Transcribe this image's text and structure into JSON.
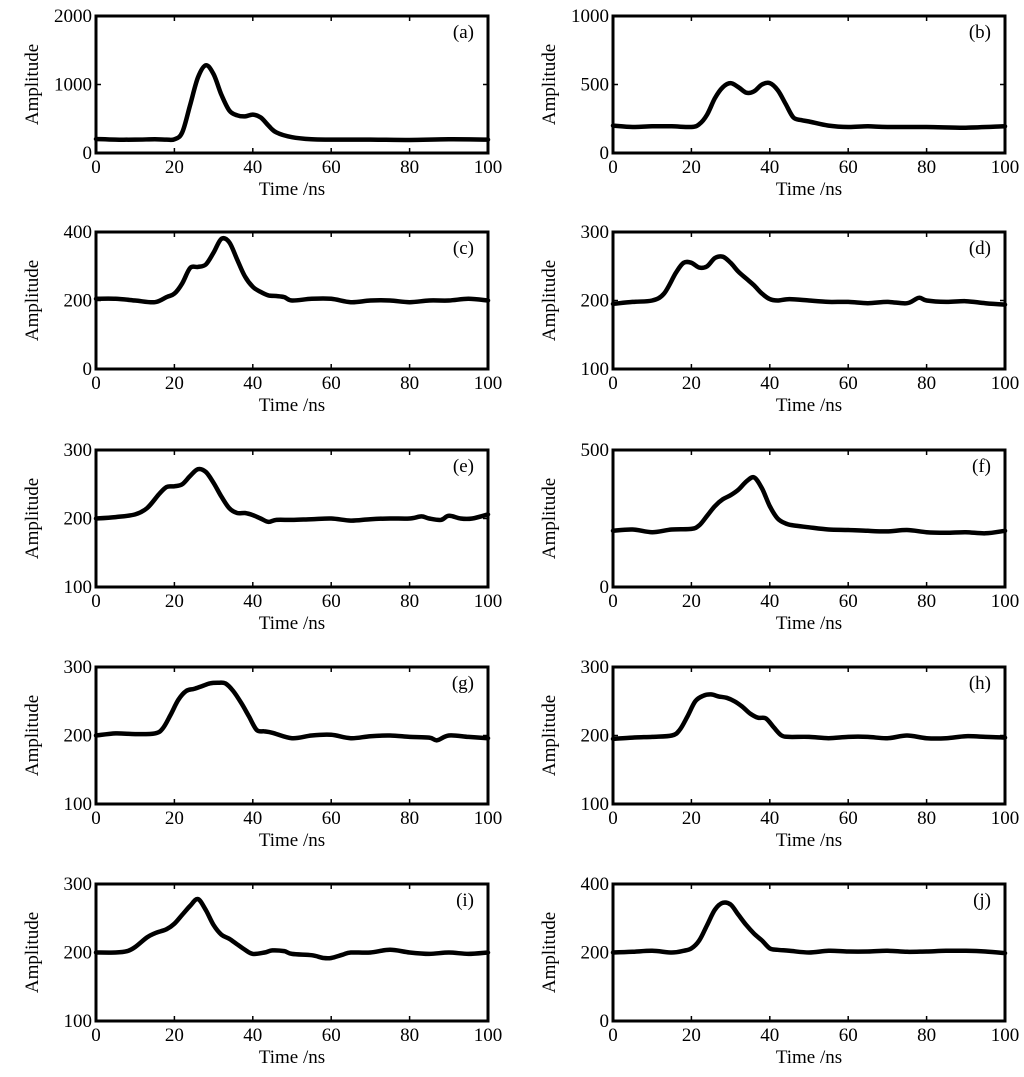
{
  "chart_data": [
    {
      "panel": "(a)",
      "type": "line",
      "xlabel": "Time /ns",
      "ylabel": "Amplitude",
      "xlim": [
        0,
        100
      ],
      "ylim": [
        0,
        2000
      ],
      "xticks": [
        "0",
        "20",
        "40",
        "60",
        "80",
        "100"
      ],
      "yticks": [
        "0",
        "1000",
        "2000"
      ],
      "series": [
        {
          "name": "(a)",
          "x": [
            0,
            5,
            10,
            15,
            18,
            20,
            22,
            24,
            26,
            28,
            30,
            32,
            34,
            36,
            38,
            40,
            42,
            44,
            46,
            50,
            55,
            60,
            70,
            80,
            90,
            100
          ],
          "values": [
            205,
            195,
            195,
            200,
            195,
            200,
            300,
            700,
            1100,
            1280,
            1150,
            850,
            620,
            550,
            535,
            560,
            520,
            400,
            300,
            230,
            200,
            195,
            195,
            190,
            200,
            195
          ]
        }
      ]
    },
    {
      "panel": "(b)",
      "type": "line",
      "xlabel": "Time /ns",
      "ylabel": "Amplitude",
      "xlim": [
        0,
        100
      ],
      "ylim": [
        0,
        1000
      ],
      "xticks": [
        "0",
        "20",
        "40",
        "60",
        "80",
        "100"
      ],
      "yticks": [
        "0",
        "500",
        "1000"
      ],
      "series": [
        {
          "name": "(b)",
          "x": [
            0,
            5,
            10,
            15,
            20,
            22,
            24,
            26,
            28,
            30,
            32,
            34,
            36,
            38,
            40,
            42,
            44,
            46,
            48,
            50,
            55,
            60,
            65,
            70,
            80,
            90,
            100
          ],
          "values": [
            200,
            190,
            195,
            195,
            190,
            210,
            280,
            400,
            480,
            510,
            480,
            440,
            450,
            500,
            510,
            460,
            360,
            260,
            240,
            230,
            200,
            190,
            195,
            190,
            190,
            185,
            195
          ]
        }
      ]
    },
    {
      "panel": "(c)",
      "type": "line",
      "xlabel": "Time /ns",
      "ylabel": "Amplitude",
      "xlim": [
        0,
        100
      ],
      "ylim": [
        0,
        400
      ],
      "xticks": [
        "0",
        "20",
        "40",
        "60",
        "80",
        "100"
      ],
      "yticks": [
        "0",
        "200",
        "400"
      ],
      "series": [
        {
          "name": "(c)",
          "x": [
            0,
            5,
            10,
            15,
            18,
            20,
            22,
            24,
            26,
            28,
            30,
            32,
            34,
            36,
            38,
            40,
            42,
            44,
            46,
            48,
            50,
            55,
            60,
            65,
            70,
            75,
            80,
            85,
            90,
            95,
            100
          ],
          "values": [
            205,
            205,
            200,
            195,
            210,
            220,
            250,
            295,
            298,
            305,
            340,
            380,
            370,
            320,
            270,
            240,
            225,
            215,
            213,
            210,
            200,
            205,
            205,
            195,
            200,
            200,
            195,
            200,
            200,
            205,
            200
          ]
        }
      ]
    },
    {
      "panel": "(d)",
      "type": "line",
      "xlabel": "Time /ns",
      "ylabel": "Amplitude",
      "xlim": [
        0,
        100
      ],
      "ylim": [
        100,
        300
      ],
      "xticks": [
        "0",
        "20",
        "40",
        "60",
        "80",
        "100"
      ],
      "yticks": [
        "100",
        "200",
        "300"
      ],
      "series": [
        {
          "name": "(d)",
          "x": [
            0,
            5,
            10,
            13,
            16,
            18,
            20,
            22,
            24,
            26,
            28,
            30,
            32,
            34,
            36,
            38,
            40,
            42,
            45,
            50,
            55,
            60,
            65,
            70,
            75,
            78,
            80,
            85,
            90,
            95,
            100
          ],
          "values": [
            195,
            198,
            200,
            210,
            240,
            255,
            255,
            248,
            250,
            262,
            264,
            255,
            242,
            232,
            222,
            210,
            202,
            200,
            202,
            200,
            198,
            198,
            196,
            198,
            196,
            204,
            200,
            198,
            199,
            196,
            194
          ]
        }
      ]
    },
    {
      "panel": "(e)",
      "type": "line",
      "xlabel": "Time /ns",
      "ylabel": "Amplitude",
      "xlim": [
        0,
        100
      ],
      "ylim": [
        100,
        300
      ],
      "xticks": [
        "0",
        "20",
        "40",
        "60",
        "80",
        "100"
      ],
      "yticks": [
        "100",
        "200",
        "300"
      ],
      "series": [
        {
          "name": "(e)",
          "x": [
            0,
            5,
            10,
            13,
            16,
            18,
            20,
            22,
            24,
            26,
            28,
            30,
            32,
            34,
            36,
            38,
            40,
            42,
            44,
            46,
            50,
            55,
            60,
            65,
            70,
            75,
            80,
            83,
            85,
            88,
            90,
            93,
            96,
            100
          ],
          "values": [
            200,
            202,
            206,
            215,
            235,
            246,
            247,
            250,
            262,
            272,
            268,
            252,
            232,
            215,
            208,
            208,
            205,
            200,
            195,
            198,
            198,
            199,
            200,
            197,
            199,
            200,
            200,
            203,
            200,
            198,
            204,
            200,
            200,
            206
          ]
        }
      ]
    },
    {
      "panel": "(f)",
      "type": "line",
      "xlabel": "Time /ns",
      "ylabel": "Amplitude",
      "xlim": [
        0,
        100
      ],
      "ylim": [
        0,
        500
      ],
      "xticks": [
        "0",
        "20",
        "40",
        "60",
        "80",
        "100"
      ],
      "yticks": [
        "0",
        "500"
      ],
      "series": [
        {
          "name": "(f)",
          "x": [
            0,
            5,
            10,
            15,
            20,
            22,
            24,
            26,
            28,
            30,
            32,
            34,
            36,
            38,
            40,
            42,
            44,
            46,
            50,
            55,
            60,
            65,
            70,
            75,
            80,
            85,
            90,
            95,
            100
          ],
          "values": [
            205,
            210,
            200,
            210,
            212,
            225,
            260,
            295,
            320,
            335,
            355,
            385,
            400,
            360,
            295,
            250,
            232,
            225,
            218,
            210,
            208,
            205,
            203,
            208,
            200,
            198,
            200,
            196,
            205
          ]
        }
      ]
    },
    {
      "panel": "(g)",
      "type": "line",
      "xlabel": "Time /ns",
      "ylabel": "Amplitude",
      "xlim": [
        0,
        100
      ],
      "ylim": [
        100,
        300
      ],
      "xticks": [
        "0",
        "20",
        "40",
        "60",
        "80",
        "100"
      ],
      "yticks": [
        "100",
        "200",
        "300"
      ],
      "series": [
        {
          "name": "(g)",
          "x": [
            0,
            5,
            10,
            15,
            17,
            19,
            21,
            23,
            25,
            27,
            29,
            31,
            33,
            35,
            37,
            39,
            41,
            43,
            45,
            50,
            55,
            60,
            65,
            70,
            75,
            80,
            85,
            87,
            90,
            95,
            100
          ],
          "values": [
            200,
            203,
            202,
            203,
            210,
            230,
            252,
            265,
            268,
            272,
            276,
            277,
            276,
            265,
            248,
            228,
            208,
            206,
            204,
            196,
            200,
            201,
            196,
            199,
            200,
            198,
            197,
            193,
            200,
            198,
            196
          ]
        }
      ]
    },
    {
      "panel": "(h)",
      "type": "line",
      "xlabel": "Time /ns",
      "ylabel": "Amplitude",
      "xlim": [
        0,
        100
      ],
      "ylim": [
        100,
        300
      ],
      "xticks": [
        "0",
        "20",
        "40",
        "60",
        "80",
        "100"
      ],
      "yticks": [
        "100",
        "200",
        "300"
      ],
      "series": [
        {
          "name": "(h)",
          "x": [
            0,
            5,
            10,
            15,
            17,
            19,
            21,
            23,
            25,
            27,
            29,
            31,
            33,
            35,
            37,
            39,
            41,
            43,
            45,
            50,
            55,
            60,
            65,
            70,
            75,
            80,
            85,
            90,
            95,
            100
          ],
          "values": [
            195,
            197,
            198,
            200,
            208,
            228,
            250,
            258,
            260,
            257,
            255,
            250,
            242,
            232,
            226,
            225,
            212,
            200,
            198,
            198,
            196,
            198,
            198,
            196,
            200,
            196,
            196,
            199,
            198,
            197
          ]
        }
      ]
    },
    {
      "panel": "(i)",
      "type": "line",
      "xlabel": "Time /ns",
      "ylabel": "Amplitude",
      "xlim": [
        0,
        100
      ],
      "ylim": [
        100,
        300
      ],
      "xticks": [
        "0",
        "20",
        "40",
        "60",
        "80",
        "100"
      ],
      "yticks": [
        "100",
        "200",
        "300"
      ],
      "series": [
        {
          "name": "(i)",
          "x": [
            0,
            5,
            8,
            10,
            13,
            15,
            18,
            20,
            22,
            24,
            26,
            28,
            30,
            32,
            34,
            36,
            38,
            40,
            43,
            45,
            48,
            50,
            55,
            58,
            60,
            63,
            65,
            70,
            75,
            80,
            85,
            90,
            95,
            100
          ],
          "values": [
            200,
            200,
            202,
            208,
            222,
            228,
            234,
            242,
            255,
            268,
            278,
            262,
            240,
            226,
            220,
            212,
            204,
            198,
            200,
            203,
            202,
            198,
            196,
            192,
            192,
            197,
            200,
            200,
            204,
            200,
            198,
            200,
            198,
            200
          ]
        }
      ]
    },
    {
      "panel": "(j)",
      "type": "line",
      "xlabel": "Time /ns",
      "ylabel": "Amplitude",
      "xlim": [
        0,
        100
      ],
      "ylim": [
        0,
        400
      ],
      "xticks": [
        "0",
        "20",
        "40",
        "60",
        "80",
        "100"
      ],
      "yticks": [
        "0",
        "200",
        "400"
      ],
      "series": [
        {
          "name": "(j)",
          "x": [
            0,
            5,
            10,
            15,
            18,
            20,
            22,
            24,
            26,
            28,
            30,
            32,
            34,
            36,
            38,
            40,
            42,
            45,
            50,
            55,
            60,
            65,
            70,
            75,
            80,
            85,
            90,
            95,
            100
          ],
          "values": [
            200,
            202,
            205,
            200,
            205,
            212,
            235,
            280,
            325,
            345,
            340,
            310,
            280,
            255,
            235,
            212,
            208,
            205,
            200,
            205,
            203,
            203,
            205,
            202,
            203,
            205,
            205,
            203,
            198
          ]
        }
      ]
    }
  ]
}
